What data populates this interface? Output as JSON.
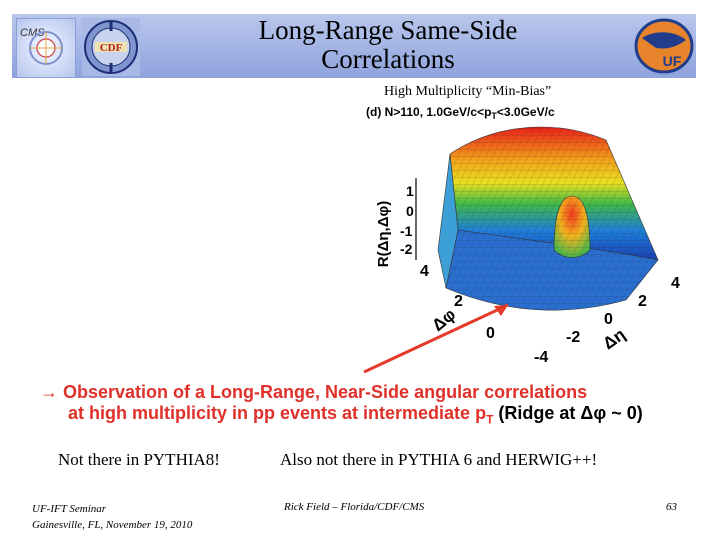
{
  "header": {
    "title_line1": "Long-Range Same-Side",
    "title_line2": "Correlations",
    "logo_left_text": "CMS",
    "logo_cdf_text": "CDF",
    "logo_right_text": "UF"
  },
  "subtitle": "High Multiplicity “Min-Bias”",
  "plot": {
    "panel_label": "(d) N>110, 1.0GeV/c<p",
    "panel_label_sub": "T",
    "panel_label_tail": "<3.0GeV/c",
    "z_axis_label": "R(Δη,Δφ)",
    "z_ticks": [
      "1",
      "0",
      "-1",
      "-2"
    ],
    "dphi_ticks": [
      "4",
      "2",
      "0"
    ],
    "dphi_label": "Δφ",
    "deta_ticks": [
      "4",
      "2",
      "0",
      "-2",
      "-4"
    ],
    "deta_label": "Δη"
  },
  "observation": {
    "arrow": "→",
    "line1": "Observation of a Long-Range, Near-Side angular correlations",
    "line2_main": "at high multiplicity in pp events at intermediate p",
    "line2_sub": "T",
    "line2_ridge": "(Ridge at Δφ ~ 0)"
  },
  "notes": {
    "left": "Not there in PYTHIA8!",
    "right": "Also not there in PYTHIA 6 and HERWIG++!"
  },
  "footer": {
    "left_line1": "UF-IFT Seminar",
    "left_line2": "Gainesville, FL, November 19, 2010",
    "middle": "Rick Field – Florida/CDF/CMS",
    "page": "63"
  },
  "colors": {
    "header_band": "#a3b4e4",
    "observation_red": "#e0302a",
    "arrow_red": "#e53a2a"
  }
}
